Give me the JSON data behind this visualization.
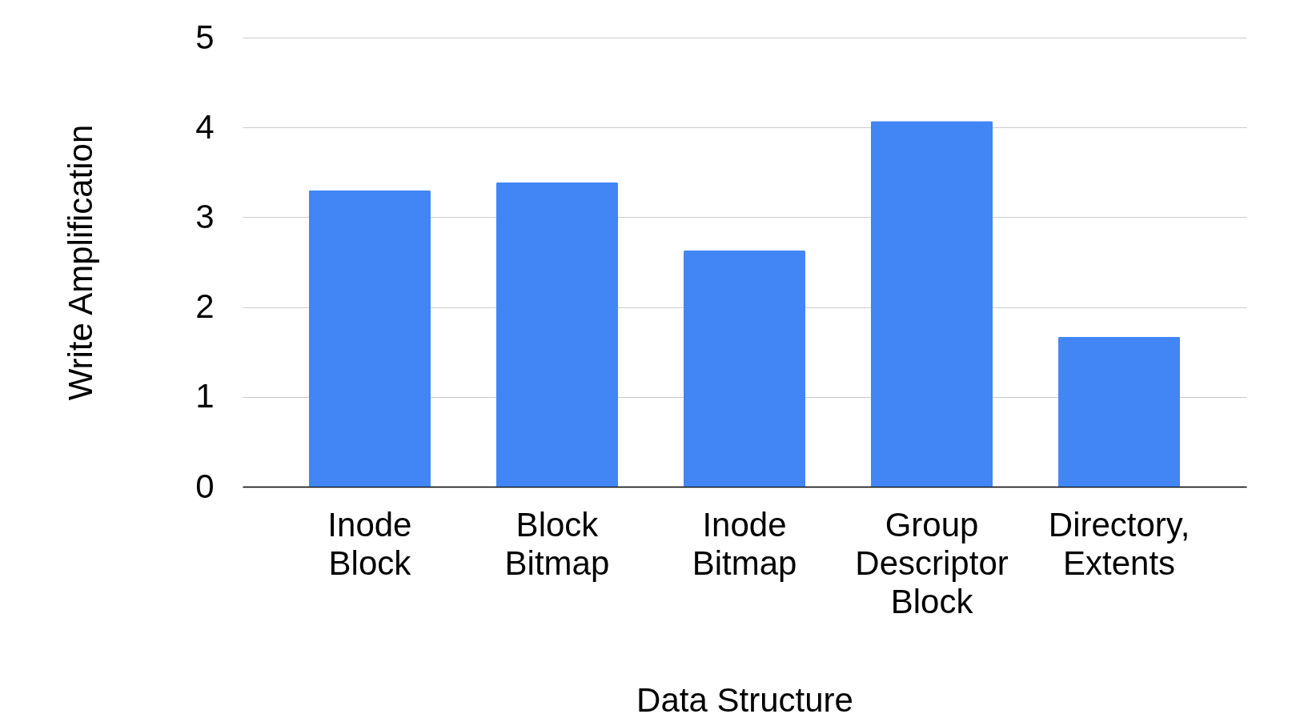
{
  "chart_data": {
    "type": "bar",
    "xlabel": "Data Structure",
    "ylabel": "Write Amplification",
    "categories": [
      "Inode Block",
      "Block Bitmap",
      "Inode Bitmap",
      "Group Descriptor Block",
      "Directory, Extents"
    ],
    "values": [
      3.3,
      3.39,
      2.63,
      4.07,
      1.67
    ],
    "color": "#4285f4",
    "ylim": [
      0,
      5
    ],
    "yticks": [
      0,
      1,
      2,
      3,
      4,
      5
    ],
    "grid": "y"
  }
}
